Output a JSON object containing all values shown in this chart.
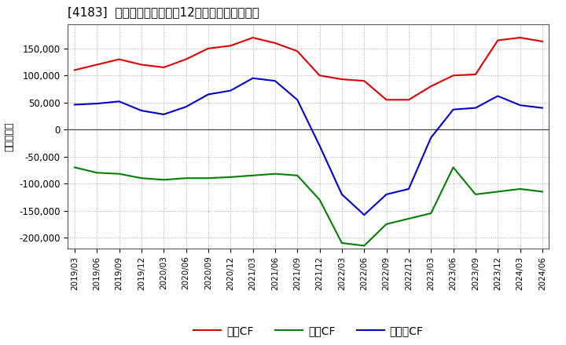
{
  "title": "[4183]  キャッシュフローの12か月移動合計の推移",
  "ylabel": "（百万円）",
  "background_color": "#ffffff",
  "plot_bg_color": "#ffffff",
  "grid_color": "#aaaaaa",
  "dates": [
    "2019/03",
    "2019/06",
    "2019/09",
    "2019/12",
    "2020/03",
    "2020/06",
    "2020/09",
    "2020/12",
    "2021/03",
    "2021/06",
    "2021/09",
    "2021/12",
    "2022/03",
    "2022/06",
    "2022/09",
    "2022/12",
    "2023/03",
    "2023/06",
    "2023/09",
    "2023/12",
    "2024/03",
    "2024/06"
  ],
  "operating_cf": [
    110000,
    120000,
    130000,
    120000,
    115000,
    130000,
    150000,
    155000,
    170000,
    160000,
    145000,
    100000,
    93000,
    90000,
    55000,
    55000,
    80000,
    100000,
    102000,
    165000,
    170000,
    163000
  ],
  "investing_cf": [
    -70000,
    -80000,
    -82000,
    -90000,
    -93000,
    -90000,
    -90000,
    -88000,
    -85000,
    -82000,
    -85000,
    -130000,
    -210000,
    -215000,
    -175000,
    -165000,
    -155000,
    -70000,
    -120000,
    -115000,
    -110000,
    -115000
  ],
  "free_cf": [
    46000,
    48000,
    52000,
    35000,
    28000,
    42000,
    65000,
    72000,
    95000,
    90000,
    55000,
    -30000,
    -120000,
    -158000,
    -120000,
    -110000,
    -15000,
    37000,
    40000,
    62000,
    45000,
    40000
  ],
  "operating_color": "#dd0000",
  "investing_color": "#008000",
  "free_color": "#0000cc",
  "ylim": [
    -220000,
    195000
  ],
  "yticks": [
    -200000,
    -150000,
    -100000,
    -50000,
    0,
    50000,
    100000,
    150000
  ],
  "legend_labels": [
    "営業CF",
    "投資CF",
    "フリーCF"
  ]
}
